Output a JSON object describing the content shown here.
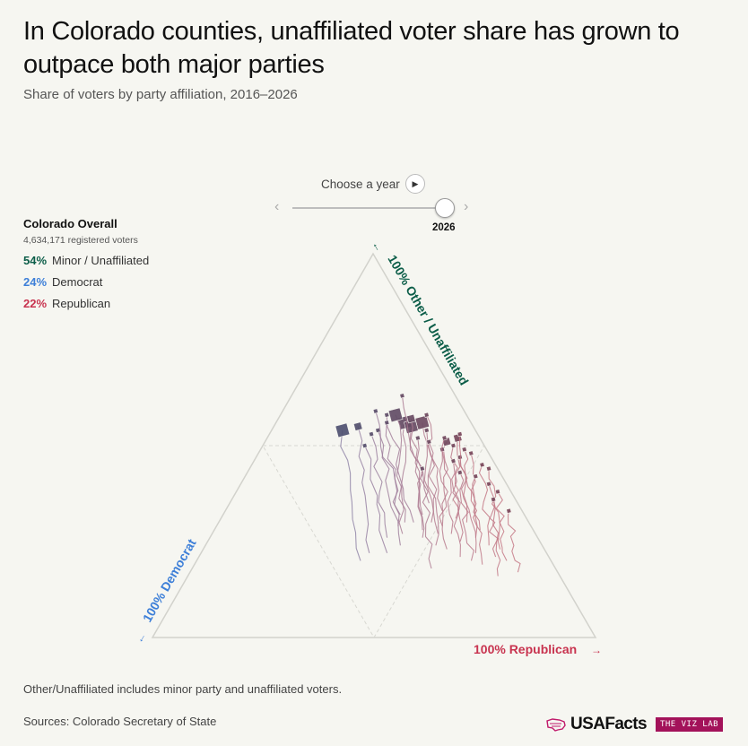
{
  "header": {
    "title": "In Colorado counties, unaffiliated voter share has grown to outpace both major parties",
    "subtitle": "Share of voters by party affiliation, 2016–2026"
  },
  "year_control": {
    "label": "Choose a year",
    "selected_year": "2026",
    "prev_glyph": "‹",
    "next_glyph": "›",
    "play_glyph": "▶"
  },
  "overall": {
    "title": "Colorado Overall",
    "registered": "4,634,171 registered voters",
    "rows": [
      {
        "pct": "54%",
        "label": "Minor / Unaffiliated",
        "color": "#0b5d48"
      },
      {
        "pct": "24%",
        "label": "Democrat",
        "color": "#3d7fd8"
      },
      {
        "pct": "22%",
        "label": "Republican",
        "color": "#c8334f"
      }
    ]
  },
  "axes": {
    "other": "100% Other / Unaffiliated",
    "dem": "100% Democrat",
    "rep": "100% Republican",
    "other_color": "#0b5d48",
    "dem_color": "#3d7fd8",
    "rep_color": "#c8334f"
  },
  "footer": {
    "note": "Other/Unaffiliated includes minor party and unaffiliated voters.",
    "sources": "Sources: Colorado Secretary of State",
    "brand": "USAFacts",
    "tag": "THE VIZ LAB"
  },
  "chart_data": {
    "type": "scatter",
    "subtype": "ternary",
    "components": [
      "Other / Unaffiliated",
      "Democrat",
      "Republican"
    ],
    "years": [
      2016,
      2026
    ],
    "counties": [
      {
        "start": [
          20,
          43,
          37
        ],
        "end": [
          54,
          30,
          16
        ],
        "size": "large"
      },
      {
        "start": [
          27,
          30,
          43
        ],
        "end": [
          56,
          15,
          29
        ],
        "size": "large"
      },
      {
        "start": [
          30,
          22,
          48
        ],
        "end": [
          56,
          11,
          33
        ],
        "size": "large"
      },
      {
        "start": [
          30,
          28,
          42
        ],
        "end": [
          58,
          16,
          26
        ],
        "size": "large"
      },
      {
        "start": [
          28,
          25,
          47
        ],
        "end": [
          55,
          14,
          31
        ],
        "size": "large"
      },
      {
        "start": [
          32,
          23,
          45
        ],
        "end": [
          57,
          13,
          30
        ],
        "size": "medium"
      },
      {
        "start": [
          22,
          40,
          38
        ],
        "end": [
          55,
          26,
          19
        ],
        "size": "medium"
      },
      {
        "start": [
          29,
          20,
          51
        ],
        "end": [
          51,
          8,
          41
        ],
        "size": "medium"
      },
      {
        "start": [
          31,
          16,
          53
        ],
        "end": [
          52,
          5,
          43
        ],
        "size": "medium"
      },
      {
        "start": [
          26,
          14,
          60
        ],
        "end": [
          48,
          4,
          48
        ],
        "size": "small"
      },
      {
        "start": [
          24,
          12,
          64
        ],
        "end": [
          45,
          3,
          52
        ],
        "size": "small"
      },
      {
        "start": [
          23,
          10,
          67
        ],
        "end": [
          44,
          2,
          54
        ],
        "size": "small"
      },
      {
        "start": [
          21,
          12,
          67
        ],
        "end": [
          40,
          4,
          56
        ],
        "size": "small"
      },
      {
        "start": [
          20,
          10,
          70
        ],
        "end": [
          38,
          3,
          59
        ],
        "size": "small"
      },
      {
        "start": [
          17,
          9,
          74
        ],
        "end": [
          33,
          3,
          64
        ],
        "size": "small"
      },
      {
        "start": [
          26,
          26,
          48
        ],
        "end": [
          52,
          14,
          34
        ],
        "size": "small"
      },
      {
        "start": [
          24,
          32,
          44
        ],
        "end": [
          54,
          22,
          24
        ],
        "size": "small"
      },
      {
        "start": [
          30,
          26,
          44
        ],
        "end": [
          58,
          18,
          24
        ],
        "size": "small"
      },
      {
        "start": [
          27,
          22,
          51
        ],
        "end": [
          54,
          11,
          35
        ],
        "size": "small"
      },
      {
        "start": [
          33,
          18,
          49
        ],
        "end": [
          58,
          9,
          33
        ],
        "size": "small"
      },
      {
        "start": [
          25,
          18,
          57
        ],
        "end": [
          50,
          7,
          43
        ],
        "size": "small"
      },
      {
        "start": [
          22,
          16,
          62
        ],
        "end": [
          47,
          7,
          46
        ],
        "size": "small"
      },
      {
        "start": [
          28,
          12,
          60
        ],
        "end": [
          49,
          5,
          46
        ],
        "size": "small"
      },
      {
        "start": [
          19,
          16,
          65
        ],
        "end": [
          42,
          6,
          52
        ],
        "size": "small"
      },
      {
        "start": [
          35,
          20,
          45
        ],
        "end": [
          63,
          12,
          25
        ],
        "size": "small"
      },
      {
        "start": [
          32,
          28,
          40
        ],
        "end": [
          59,
          20,
          21
        ],
        "size": "small"
      },
      {
        "start": [
          24,
          24,
          52
        ],
        "end": [
          51,
          12,
          37
        ],
        "size": "small"
      },
      {
        "start": [
          29,
          30,
          41
        ],
        "end": [
          56,
          19,
          25
        ],
        "size": "small"
      },
      {
        "start": [
          21,
          20,
          59
        ],
        "end": [
          46,
          9,
          45
        ],
        "size": "small"
      },
      {
        "start": [
          26,
          34,
          40
        ],
        "end": [
          53,
          24,
          23
        ],
        "size": "small"
      },
      {
        "start": [
          18,
          28,
          54
        ],
        "end": [
          44,
          17,
          39
        ],
        "size": "small"
      },
      {
        "start": [
          23,
          22,
          55
        ],
        "end": [
          49,
          10,
          41
        ],
        "size": "small"
      },
      {
        "start": [
          20,
          18,
          62
        ],
        "end": [
          43,
          9,
          48
        ],
        "size": "small"
      },
      {
        "start": [
          27,
          19,
          54
        ],
        "end": [
          52,
          8,
          40
        ],
        "size": "small"
      },
      {
        "start": [
          30,
          14,
          56
        ],
        "end": [
          53,
          4,
          43
        ],
        "size": "small"
      },
      {
        "start": [
          16,
          14,
          70
        ],
        "end": [
          36,
          5,
          59
        ],
        "size": "small"
      },
      {
        "start": [
          22,
          36,
          42
        ],
        "end": [
          50,
          27,
          23
        ],
        "size": "small"
      }
    ]
  }
}
